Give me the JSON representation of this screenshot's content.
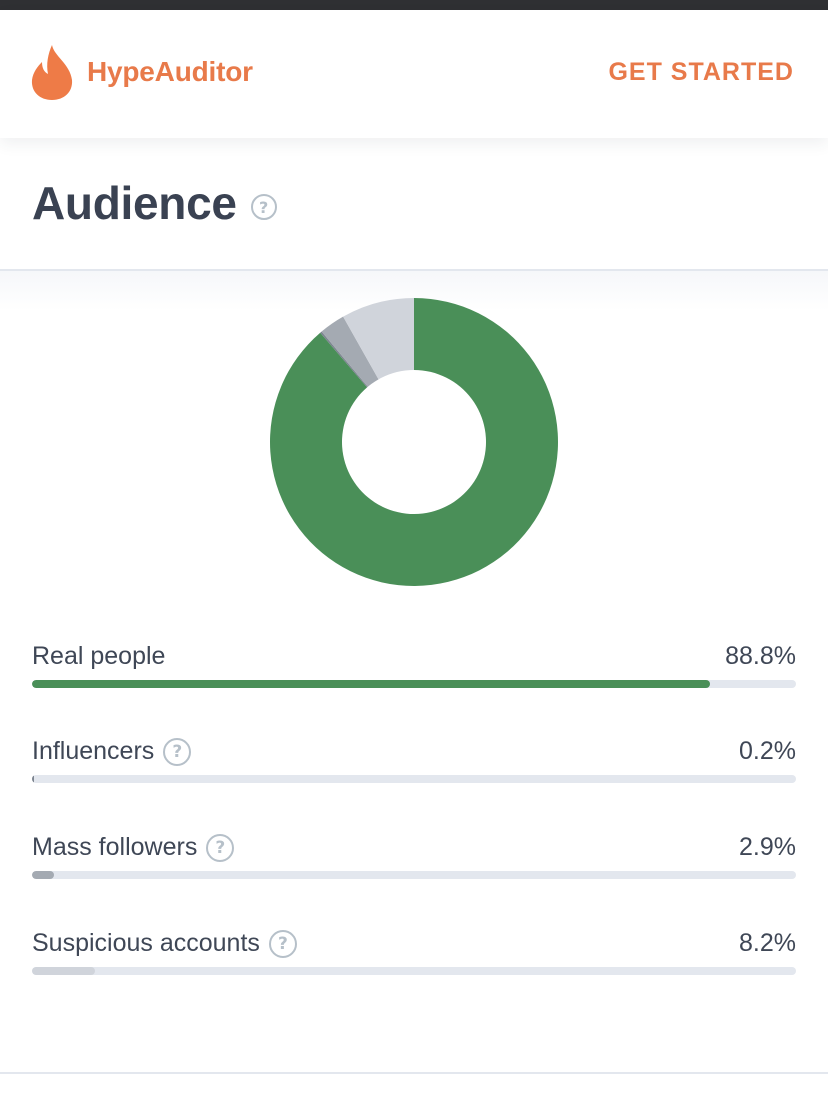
{
  "app": {
    "brand": "HypeAuditor",
    "cta_label": "GET STARTED"
  },
  "section": {
    "title": "Audience"
  },
  "colors": {
    "brand": "#e87a4a",
    "real_people": "#4a8f58",
    "influencers": "#7d8590",
    "mass_followers": "#a4aab2",
    "suspicious": "#d0d4db",
    "track": "#e3e7ee"
  },
  "metrics": [
    {
      "key": "real_people",
      "label": "Real people",
      "value_text": "88.8%",
      "percent": 88.8,
      "has_help": false,
      "color": "#4a8f58"
    },
    {
      "key": "influencers",
      "label": "Influencers",
      "value_text": "0.2%",
      "percent": 0.2,
      "has_help": true,
      "color": "#7d8590"
    },
    {
      "key": "mass_followers",
      "label": "Mass followers",
      "value_text": "2.9%",
      "percent": 2.9,
      "has_help": true,
      "color": "#a4aab2"
    },
    {
      "key": "suspicious_accounts",
      "label": "Suspicious accounts",
      "value_text": "8.2%",
      "percent": 8.2,
      "has_help": true,
      "color": "#d0d4db"
    }
  ]
}
